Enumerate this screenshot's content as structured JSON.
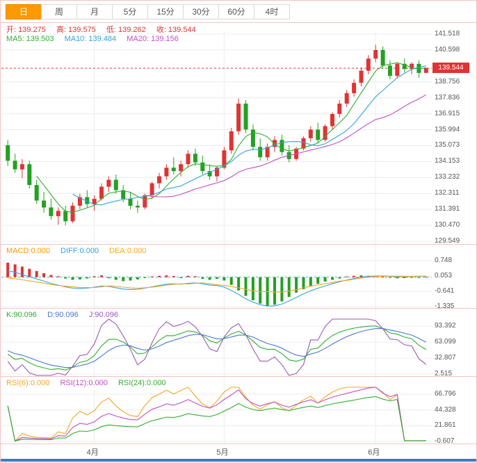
{
  "toolbar": {
    "tabs": [
      {
        "label": "日",
        "active": true
      },
      {
        "label": "周",
        "active": false
      },
      {
        "label": "月",
        "active": false
      },
      {
        "label": "5分",
        "active": false
      },
      {
        "label": "15分",
        "active": false
      },
      {
        "label": "30分",
        "active": false
      },
      {
        "label": "60分",
        "active": false
      },
      {
        "label": "4时",
        "active": false
      }
    ]
  },
  "main_header": {
    "open": "开: 139.275",
    "high": "高: 139.575",
    "low": "低: 139.262",
    "close": "收: 139.544",
    "ma5": "MA5: 139.503",
    "ma10": "MA10: 139.484",
    "ma20": "MA20: 139.156"
  },
  "macd_header": {
    "macd": "MACD:0.000",
    "diff": "DIFF:0.000",
    "dea": "DEA:0.000"
  },
  "kdj_header": {
    "k": "K:90.096",
    "d": "D:90.096",
    "j": "J:90.096"
  },
  "rsi_header": {
    "rsi6": "RSI(6):0.000",
    "rsi12": "RSI(12):0.000",
    "rsi24": "RSI(24):0.000"
  },
  "price_tag": "139.544",
  "colors": {
    "up": "#e03333",
    "down": "#22a122",
    "ma5": "#2fae2f",
    "ma10": "#35a3d8",
    "ma20": "#c24ec2",
    "diff": "#35a3d8",
    "dea": "#f5a623",
    "k": "#2fae2f",
    "d": "#4a77d4",
    "j": "#9b59b6",
    "rsi6": "#f5a623",
    "rsi12": "#c24ec2",
    "rsi24": "#2fae2f",
    "grid": "#ececec",
    "frame": "#f0c4c4",
    "axis_text": "#555555",
    "tag_bg": "#e03333",
    "accent_blue": "#2f80d0",
    "active_tab": "#ff9900",
    "zero_line": "#3bb7c9"
  },
  "chart_data": [
    {
      "type": "candlestick",
      "title": "USD/JPY daily candles with MA5/MA10/MA20",
      "current_price": 139.544,
      "ma_periods": [
        5,
        10,
        20
      ],
      "ylim": [
        129.549,
        141.518
      ],
      "y_ticks": [
        "141.518",
        "140.598",
        "138.756",
        "137.836",
        "136.915",
        "135.994",
        "135.073",
        "134.153",
        "133.232",
        "132.311",
        "131.391",
        "130.470",
        "129.549"
      ],
      "x_labels": [
        {
          "index": 12,
          "label": "4月"
        },
        {
          "index": 30,
          "label": "5月"
        },
        {
          "index": 51,
          "label": "6月"
        }
      ],
      "candles": [
        [
          135.1,
          135.4,
          133.9,
          134.2
        ],
        [
          134.2,
          134.6,
          133.5,
          133.7
        ],
        [
          133.7,
          134.3,
          133.2,
          134.0
        ],
        [
          134.0,
          134.2,
          132.6,
          132.8
        ],
        [
          132.8,
          133.1,
          131.7,
          131.9
        ],
        [
          131.9,
          132.4,
          131.2,
          131.5
        ],
        [
          131.5,
          132.0,
          130.8,
          131.0
        ],
        [
          131.0,
          131.5,
          130.5,
          131.3
        ],
        [
          131.3,
          131.6,
          130.47,
          130.7
        ],
        [
          130.7,
          131.8,
          130.6,
          131.6
        ],
        [
          131.6,
          132.3,
          131.4,
          132.1
        ],
        [
          132.1,
          132.5,
          131.5,
          131.7
        ],
        [
          131.7,
          132.2,
          131.3,
          132.0
        ],
        [
          132.0,
          132.9,
          131.9,
          132.7
        ],
        [
          132.7,
          133.3,
          132.4,
          133.1
        ],
        [
          133.1,
          133.4,
          132.3,
          132.5
        ],
        [
          132.5,
          132.8,
          131.8,
          132.0
        ],
        [
          132.0,
          132.4,
          131.4,
          131.6
        ],
        [
          131.6,
          131.9,
          131.2,
          131.5
        ],
        [
          131.5,
          132.3,
          131.4,
          132.2
        ],
        [
          132.2,
          133.0,
          132.0,
          132.9
        ],
        [
          132.9,
          133.5,
          132.6,
          133.3
        ],
        [
          133.3,
          134.0,
          133.1,
          133.8
        ],
        [
          133.8,
          134.4,
          133.4,
          133.6
        ],
        [
          133.6,
          134.2,
          133.3,
          134.0
        ],
        [
          134.0,
          134.8,
          133.8,
          134.6
        ],
        [
          134.6,
          134.9,
          133.9,
          134.1
        ],
        [
          134.1,
          134.5,
          133.4,
          133.6
        ],
        [
          133.6,
          134.0,
          133.1,
          133.3
        ],
        [
          133.3,
          133.9,
          133.0,
          133.8
        ],
        [
          133.8,
          135.0,
          133.7,
          134.8
        ],
        [
          134.8,
          136.1,
          134.6,
          135.9
        ],
        [
          135.9,
          137.8,
          135.7,
          137.5
        ],
        [
          137.5,
          137.7,
          135.8,
          136.0
        ],
        [
          136.0,
          136.3,
          134.8,
          135.0
        ],
        [
          135.0,
          135.5,
          134.2,
          134.4
        ],
        [
          134.4,
          135.2,
          134.2,
          135.0
        ],
        [
          135.0,
          135.6,
          134.7,
          135.4
        ],
        [
          135.4,
          135.7,
          134.5,
          134.7
        ],
        [
          134.7,
          135.1,
          134.1,
          134.3
        ],
        [
          134.3,
          135.0,
          134.2,
          134.9
        ],
        [
          134.9,
          135.6,
          134.8,
          135.5
        ],
        [
          135.5,
          136.2,
          135.3,
          136.0
        ],
        [
          136.0,
          136.4,
          135.2,
          135.4
        ],
        [
          135.4,
          136.3,
          135.3,
          136.2
        ],
        [
          136.2,
          137.0,
          136.0,
          136.9
        ],
        [
          136.9,
          137.7,
          136.7,
          137.5
        ],
        [
          137.5,
          138.3,
          137.3,
          138.1
        ],
        [
          138.1,
          138.9,
          137.9,
          138.7
        ],
        [
          138.7,
          139.6,
          138.5,
          139.4
        ],
        [
          139.4,
          140.3,
          139.2,
          140.1
        ],
        [
          140.1,
          140.9,
          139.9,
          140.6
        ],
        [
          140.6,
          140.8,
          139.5,
          139.7
        ],
        [
          139.7,
          140.0,
          138.9,
          139.1
        ],
        [
          139.1,
          139.9,
          139.0,
          139.8
        ],
        [
          139.8,
          140.1,
          139.3,
          139.5
        ],
        [
          139.5,
          139.9,
          139.2,
          139.8
        ],
        [
          139.8,
          140.0,
          139.0,
          139.275
        ],
        [
          139.275,
          139.575,
          139.262,
          139.544
        ]
      ]
    },
    {
      "type": "macd",
      "y_ticks": [
        "0.748",
        "0.053",
        "-0.641",
        "-1.335"
      ],
      "ylim": [
        -1.335,
        0.748
      ],
      "diff": [
        0.3,
        0.22,
        0.12,
        0.02,
        -0.08,
        -0.18,
        -0.28,
        -0.36,
        -0.44,
        -0.5,
        -0.52,
        -0.5,
        -0.45,
        -0.4,
        -0.42,
        -0.48,
        -0.54,
        -0.56,
        -0.55,
        -0.5,
        -0.44,
        -0.38,
        -0.32,
        -0.3,
        -0.32,
        -0.28,
        -0.26,
        -0.3,
        -0.36,
        -0.38,
        -0.45,
        -0.6,
        -0.78,
        -0.98,
        -1.14,
        -1.25,
        -1.31,
        -1.3,
        -1.22,
        -1.08,
        -0.92,
        -0.76,
        -0.62,
        -0.5,
        -0.4,
        -0.3,
        -0.21,
        -0.13,
        -0.06,
        0.0,
        0.03,
        0.05,
        0.05,
        0.04,
        0.02,
        0.02,
        0.03,
        0.03,
        0.05
      ],
      "hist": [
        0.66,
        0.58,
        0.48,
        0.38,
        0.28,
        0.18,
        0.1,
        0.04,
        -0.06,
        -0.12,
        -0.1,
        -0.06,
        0.04,
        0.08,
        -0.05,
        -0.12,
        -0.18,
        -0.15,
        -0.1,
        -0.04,
        0.03,
        0.06,
        0.08,
        0.05,
        -0.04,
        0.06,
        0.04,
        -0.08,
        -0.12,
        -0.08,
        -0.15,
        -0.35,
        -0.6,
        -0.85,
        -1.05,
        -1.2,
        -1.3,
        -1.25,
        -1.1,
        -0.9,
        -0.7,
        -0.55,
        -0.42,
        -0.3,
        -0.2,
        -0.12,
        -0.06,
        0.03,
        0.06,
        0.08,
        0.06,
        0.04,
        0.02,
        -0.03,
        -0.05,
        -0.04,
        -0.02,
        -0.03,
        0.01
      ]
    },
    {
      "type": "kdj",
      "period": 9,
      "y_ticks": [
        "93.392",
        "63.099",
        "32.807",
        "2.515"
      ],
      "ylim": [
        2.515,
        93.392
      ]
    },
    {
      "type": "rsi",
      "periods": [
        6,
        12,
        24
      ],
      "y_ticks": [
        "66.796",
        "44.328",
        "21.861",
        "-0.607"
      ],
      "ylim": [
        -0.607,
        66.796
      ],
      "end_flat_value": 0.5,
      "end_flat_count": 4
    }
  ]
}
